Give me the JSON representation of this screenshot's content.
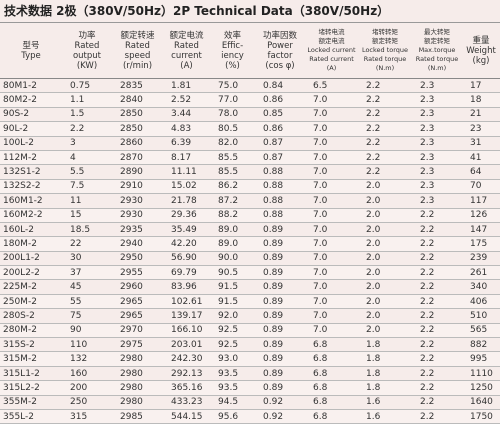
{
  "title": "技术数据 2极（380V/50Hz）2P Technical Data（380V/50Hz）",
  "header": {
    "columns": [
      [
        "型号",
        "Type"
      ],
      [
        "功率",
        "Rated",
        "output",
        "(KW)"
      ],
      [
        "额定转速",
        "Rated",
        "speed",
        "(r/min)"
      ],
      [
        "额定电流",
        "Rated",
        "current",
        "(A)"
      ],
      [
        "效率",
        "Effic-",
        "iency",
        "(%)"
      ],
      [
        "功率因数",
        "Power",
        "factor",
        "(cos φ)"
      ],
      [
        "堵转电流",
        "额定电流",
        "Locked current",
        "Rated current",
        "(A)"
      ],
      [
        "堵转转矩",
        "额定转矩",
        "Locked torque",
        "Rated torque",
        "(N.m)"
      ],
      [
        "最大转矩",
        "额定转矩",
        "Max.torque",
        "Rated torque",
        "(N.m)"
      ],
      [
        "重量",
        "Weight",
        "(kg)"
      ]
    ]
  },
  "table": {
    "rows": [
      [
        "80M1-2",
        "0.75",
        "2835",
        "1.81",
        "75.0",
        "0.84",
        "6.5",
        "2.2",
        "2.3",
        "17"
      ],
      [
        "80M2-2",
        "1.1",
        "2840",
        "2.52",
        "77.0",
        "0.86",
        "7.0",
        "2.2",
        "2.3",
        "18"
      ],
      [
        "90S-2",
        "1.5",
        "2850",
        "3.44",
        "78.0",
        "0.85",
        "7.0",
        "2.2",
        "2.3",
        "21"
      ],
      [
        "90L-2",
        "2.2",
        "2850",
        "4.83",
        "80.5",
        "0.86",
        "7.0",
        "2.2",
        "2.3",
        "23"
      ],
      [
        "100L-2",
        "3",
        "2860",
        "6.39",
        "82.0",
        "0.87",
        "7.0",
        "2.2",
        "2.3",
        "31"
      ],
      [
        "112M-2",
        "4",
        "2870",
        "8.17",
        "85.5",
        "0.87",
        "7.0",
        "2.2",
        "2.3",
        "41"
      ],
      [
        "132S1-2",
        "5.5",
        "2890",
        "11.11",
        "85.5",
        "0.88",
        "7.0",
        "2.2",
        "2.3",
        "64"
      ],
      [
        "132S2-2",
        "7.5",
        "2910",
        "15.02",
        "86.2",
        "0.88",
        "7.0",
        "2.0",
        "2.3",
        "70"
      ],
      [
        "160M1-2",
        "11",
        "2930",
        "21.78",
        "87.2",
        "0.88",
        "7.0",
        "2.0",
        "2.3",
        "117"
      ],
      [
        "160M2-2",
        "15",
        "2930",
        "29.36",
        "88.2",
        "0.88",
        "7.0",
        "2.0",
        "2.2",
        "126"
      ],
      [
        "160L-2",
        "18.5",
        "2935",
        "35.49",
        "89.0",
        "0.89",
        "7.0",
        "2.0",
        "2.2",
        "147"
      ],
      [
        "180M-2",
        "22",
        "2940",
        "42.20",
        "89.0",
        "0.89",
        "7.0",
        "2.0",
        "2.2",
        "175"
      ],
      [
        "200L1-2",
        "30",
        "2950",
        "56.90",
        "90.0",
        "0.89",
        "7.0",
        "2.0",
        "2.2",
        "239"
      ],
      [
        "200L2-2",
        "37",
        "2955",
        "69.79",
        "90.5",
        "0.89",
        "7.0",
        "2.0",
        "2.2",
        "261"
      ],
      [
        "225M-2",
        "45",
        "2960",
        "83.96",
        "91.5",
        "0.89",
        "7.0",
        "2.0",
        "2.2",
        "340"
      ],
      [
        "250M-2",
        "55",
        "2965",
        "102.61",
        "91.5",
        "0.89",
        "7.0",
        "2.0",
        "2.2",
        "406"
      ],
      [
        "280S-2",
        "75",
        "2965",
        "139.17",
        "92.0",
        "0.89",
        "7.0",
        "2.0",
        "2.2",
        "510"
      ],
      [
        "280M-2",
        "90",
        "2970",
        "166.10",
        "92.5",
        "0.89",
        "7.0",
        "2.0",
        "2.2",
        "565"
      ],
      [
        "315S-2",
        "110",
        "2975",
        "203.01",
        "92.5",
        "0.89",
        "6.8",
        "1.8",
        "2.2",
        "882"
      ],
      [
        "315M-2",
        "132",
        "2980",
        "242.30",
        "93.0",
        "0.89",
        "6.8",
        "1.8",
        "2.2",
        "995"
      ],
      [
        "315L1-2",
        "160",
        "2980",
        "292.13",
        "93.5",
        "0.89",
        "6.8",
        "1.8",
        "2.2",
        "1110"
      ],
      [
        "315L2-2",
        "200",
        "2980",
        "365.16",
        "93.5",
        "0.89",
        "6.8",
        "1.8",
        "2.2",
        "1250"
      ],
      [
        "355M-2",
        "250",
        "2980",
        "433.23",
        "94.5",
        "0.92",
        "6.8",
        "1.6",
        "2.2",
        "1640"
      ],
      [
        "355L-2",
        "315",
        "2985",
        "544.15",
        "95.6",
        "0.92",
        "6.8",
        "1.6",
        "2.2",
        "1750"
      ]
    ]
  }
}
